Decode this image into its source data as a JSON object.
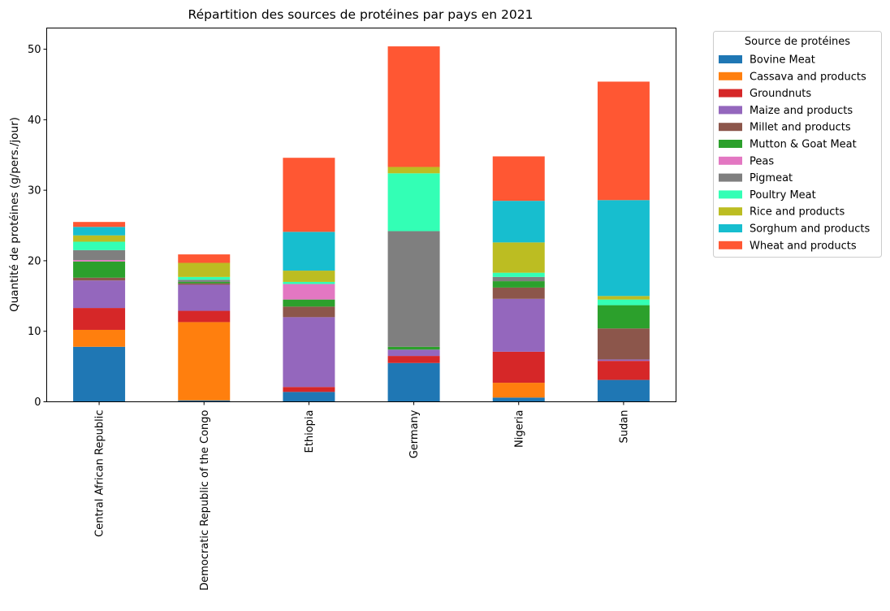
{
  "chart_data": {
    "type": "bar",
    "stacked": true,
    "title": "Répartition des sources de protéines par pays en 2021",
    "xlabel": "",
    "ylabel": "Quantité de protéines (g/pers./jour)",
    "ylim": [
      0,
      53
    ],
    "yticks": [
      0,
      10,
      20,
      30,
      40,
      50
    ],
    "grid": false,
    "legend_title": "Source de protéines",
    "legend_position": "outside-right",
    "categories": [
      "Central African Republic",
      "Democratic Republic of the Congo",
      "Ethiopia",
      "Germany",
      "Nigeria",
      "Sudan"
    ],
    "series": [
      {
        "name": "Bovine Meat",
        "color": "#1f77b4",
        "values": [
          7.8,
          0.2,
          1.4,
          5.5,
          0.6,
          3.1
        ]
      },
      {
        "name": "Cassava and products",
        "color": "#ff7f0e",
        "values": [
          2.4,
          11.1,
          0.0,
          0.0,
          2.1,
          0.0
        ]
      },
      {
        "name": "Groundnuts",
        "color": "#d62728",
        "values": [
          3.1,
          1.6,
          0.7,
          1.0,
          4.4,
          2.7
        ]
      },
      {
        "name": "Maize and products",
        "color": "#9467bd",
        "values": [
          3.9,
          3.7,
          9.9,
          0.9,
          7.5,
          0.2
        ]
      },
      {
        "name": "Millet and products",
        "color": "#8c564b",
        "values": [
          0.4,
          0.2,
          1.5,
          0.0,
          1.6,
          4.4
        ]
      },
      {
        "name": "Mutton & Goat Meat",
        "color": "#2ca02c",
        "values": [
          2.3,
          0.2,
          1.0,
          0.4,
          0.9,
          3.3
        ]
      },
      {
        "name": "Peas",
        "color": "#e377c2",
        "values": [
          0.2,
          0.0,
          2.2,
          0.0,
          0.0,
          0.0
        ]
      },
      {
        "name": "Pigmeat",
        "color": "#7f7f7f",
        "values": [
          1.4,
          0.3,
          0.0,
          16.4,
          0.6,
          0.0
        ]
      },
      {
        "name": "Poultry Meat",
        "color": "#33ffb5",
        "values": [
          1.2,
          0.4,
          0.3,
          8.2,
          0.6,
          0.8
        ]
      },
      {
        "name": "Rice and products",
        "color": "#bcbd22",
        "values": [
          0.9,
          2.0,
          1.6,
          0.9,
          4.3,
          0.5
        ]
      },
      {
        "name": "Sorghum and products",
        "color": "#17becf",
        "values": [
          1.2,
          0.0,
          5.5,
          0.0,
          5.9,
          13.6
        ]
      },
      {
        "name": "Wheat and products",
        "color": "#ff5733",
        "values": [
          0.7,
          1.2,
          10.5,
          17.1,
          6.3,
          16.8
        ]
      }
    ]
  }
}
